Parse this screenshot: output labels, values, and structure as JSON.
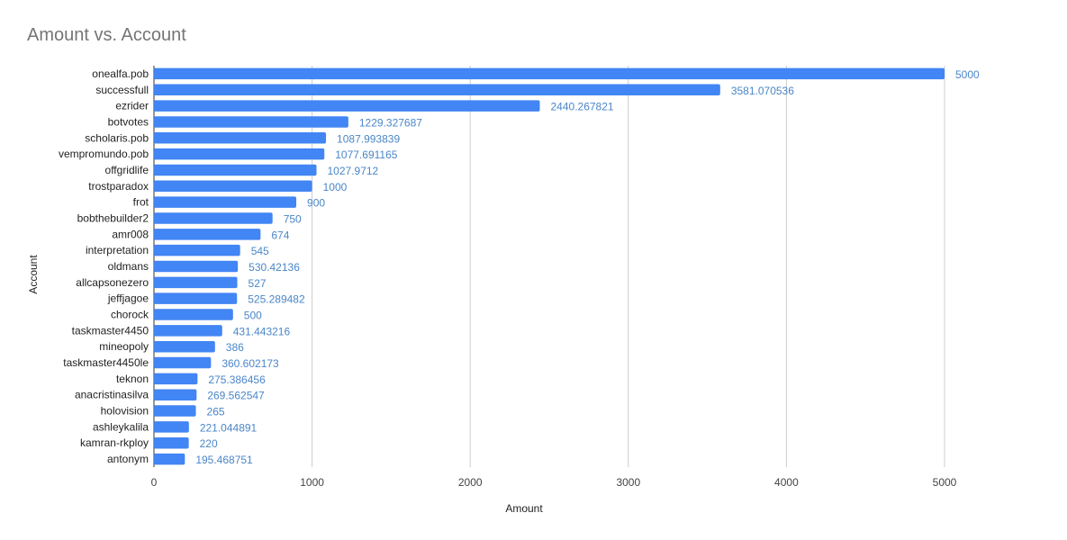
{
  "chart_data": {
    "type": "bar",
    "orientation": "horizontal",
    "title": "Amount vs. Account",
    "xlabel": "Amount",
    "ylabel": "Account",
    "xlim": [
      0,
      5000
    ],
    "xticks": [
      0,
      1000,
      2000,
      3000,
      4000,
      5000
    ],
    "grid": true,
    "legend": "none",
    "bar_color": "#4285f4",
    "label_color": "#4a86c8",
    "categories": [
      "onealfa.pob",
      "successfull",
      "ezrider",
      "botvotes",
      "scholaris.pob",
      "vempromundo.pob",
      "offgridlife",
      "trostparadox",
      "frot",
      "bobthebuilder2",
      "amr008",
      "interpretation",
      "oldmans",
      "allcapsonezero",
      "jeffjagoe",
      "chorock",
      "taskmaster4450",
      "mineopoly",
      "taskmaster4450le",
      "teknon",
      "anacristinasilva",
      "holovision",
      "ashleykalila",
      "kamran-rkploy",
      "antonym"
    ],
    "values": [
      5000,
      3581.070536,
      2440.267821,
      1229.327687,
      1087.993839,
      1077.691165,
      1027.9712,
      1000,
      900,
      750,
      674,
      545,
      530.42136,
      527,
      525.289482,
      500,
      431.443216,
      386,
      360.602173,
      275.386456,
      269.562547,
      265,
      221.044891,
      220,
      195.468751
    ],
    "value_labels": [
      "5000",
      "3581.070536",
      "2440.267821",
      "1229.327687",
      "1087.993839",
      "1077.691165",
      "1027.9712",
      "1000",
      "900",
      "750",
      "674",
      "545",
      "530.42136",
      "527",
      "525.289482",
      "500",
      "431.443216",
      "386",
      "360.602173",
      "275.386456",
      "269.562547",
      "265",
      "221.044891",
      "220",
      "195.468751"
    ]
  }
}
